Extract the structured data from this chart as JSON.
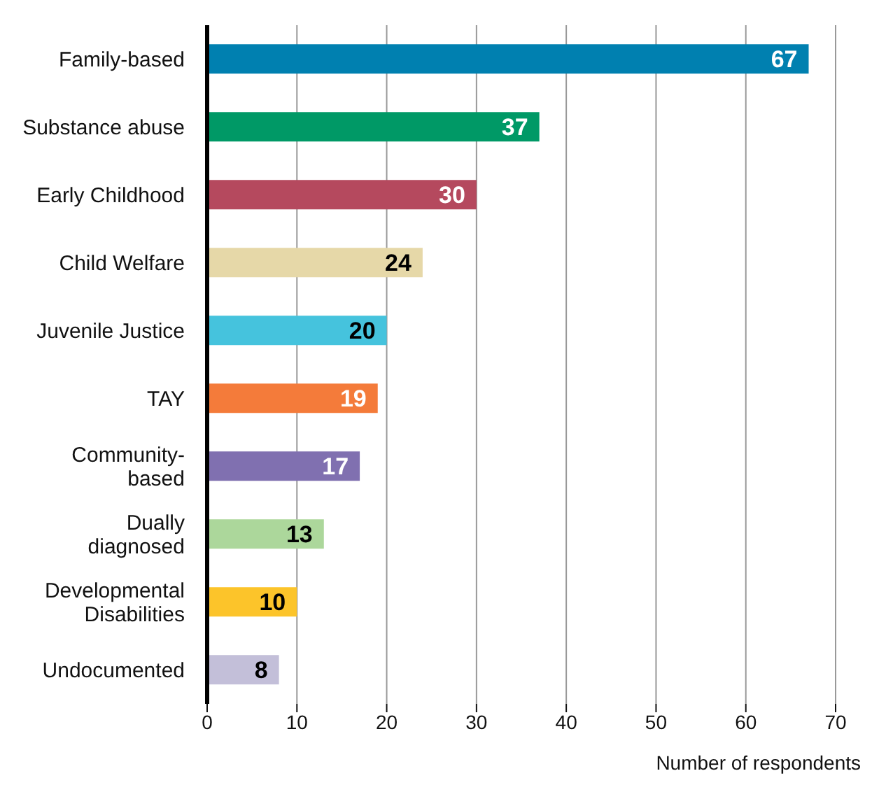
{
  "chart_data": {
    "type": "bar",
    "orientation": "horizontal",
    "categories": [
      "Family-based",
      "Substance abuse",
      "Early Childhood",
      "Child Welfare",
      "Juvenile Justice",
      "TAY",
      "Community-\nbased",
      "Dually\ndiagnosed",
      "Developmental\nDisabilities",
      "Undocumented"
    ],
    "values": [
      67,
      37,
      30,
      24,
      20,
      19,
      17,
      13,
      10,
      8
    ],
    "colors": [
      "#0080b0",
      "#009966",
      "#b5495e",
      "#e6d8a8",
      "#45c3dd",
      "#f47b3a",
      "#8070b0",
      "#acd79b",
      "#fcc42a",
      "#c3bfd9"
    ],
    "xlim": [
      0,
      70
    ],
    "xticks": [
      0,
      10,
      20,
      30,
      40,
      50,
      60,
      70
    ],
    "xlabel": "Number of respondents",
    "grid": "x",
    "data_labels": true
  }
}
